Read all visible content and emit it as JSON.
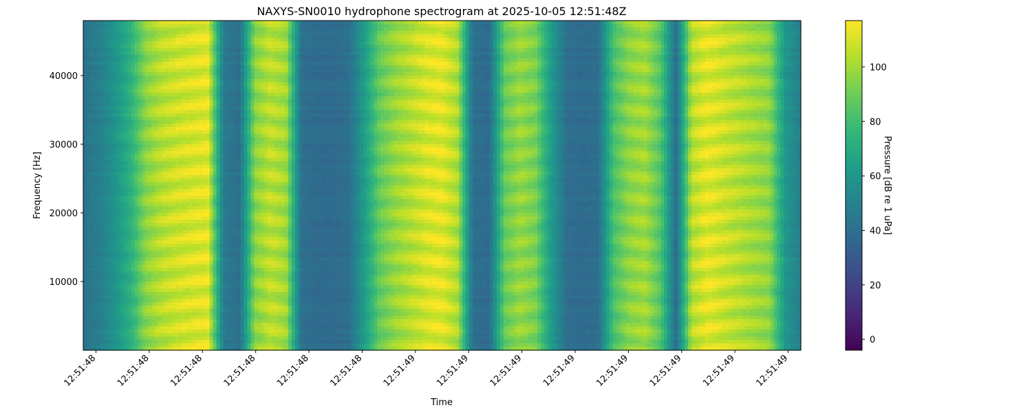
{
  "chart_data": {
    "type": "heatmap",
    "title": "NAXYS-SN0010 hydrophone spectrogram at 2025-10-05 12:51:48Z",
    "xlabel": "Time",
    "ylabel": "Frequency [Hz]",
    "x_tick_labels": [
      "12:51:48",
      "12:51:48",
      "12:51:48",
      "12:51:48",
      "12:51:48",
      "12:51:48",
      "12:51:49",
      "12:51:49",
      "12:51:49",
      "12:51:49",
      "12:51:49",
      "12:51:49",
      "12:51:49",
      "12:51:49"
    ],
    "y_ticks": [
      10000,
      20000,
      30000,
      40000
    ],
    "ylim": [
      0,
      48000
    ],
    "colorbar": {
      "label": "Pressure [dB re 1 uPa]",
      "ticks": [
        0,
        20,
        40,
        60,
        80,
        100
      ],
      "range": [
        -4,
        117
      ],
      "colormap": "viridis"
    },
    "time_levels_db": [
      42,
      48,
      58,
      72,
      95,
      104,
      108,
      110,
      112,
      46,
      40,
      95,
      105,
      100,
      40,
      38,
      38,
      40,
      62,
      88,
      98,
      104,
      110,
      112,
      102,
      40,
      38,
      88,
      98,
      92,
      62,
      40,
      38,
      40,
      82,
      96,
      100,
      85,
      40,
      104,
      112,
      108,
      104,
      100,
      96,
      60,
      48
    ],
    "harmonic_spacing_hz": 3200,
    "band_contrast_db": 12
  }
}
